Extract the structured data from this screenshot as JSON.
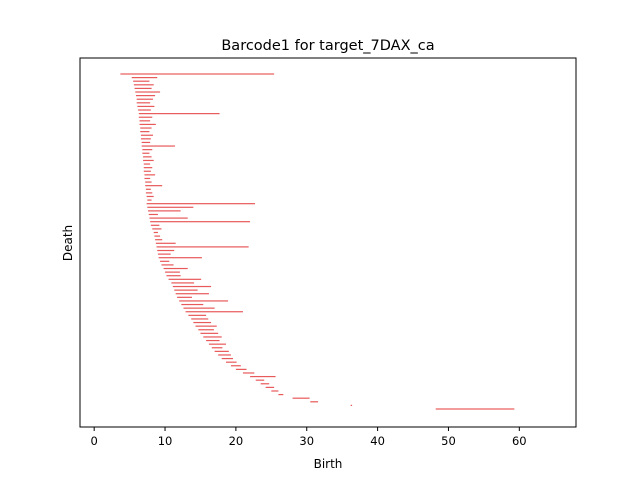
{
  "chart_data": {
    "type": "barcode",
    "title": "Barcode1 for target_7DAX_ca",
    "xlabel": "Birth",
    "ylabel": "Death",
    "xlim": [
      -2,
      68
    ],
    "xticks": [
      0,
      10,
      20,
      30,
      40,
      50,
      60
    ],
    "y_tick_labels": false,
    "bar_color": "#e8595a",
    "bars": [
      [
        3.7,
        25.4
      ],
      [
        5.3,
        8.9
      ],
      [
        5.5,
        7.8
      ],
      [
        5.6,
        8.4
      ],
      [
        5.7,
        8.1
      ],
      [
        5.8,
        9.3
      ],
      [
        5.9,
        8.6
      ],
      [
        6.0,
        8.3
      ],
      [
        6.0,
        7.9
      ],
      [
        6.1,
        8.5
      ],
      [
        6.2,
        8.0
      ],
      [
        6.3,
        17.7
      ],
      [
        6.3,
        8.2
      ],
      [
        6.4,
        7.9
      ],
      [
        6.4,
        8.7
      ],
      [
        6.5,
        8.1
      ],
      [
        6.5,
        7.8
      ],
      [
        6.6,
        8.3
      ],
      [
        6.6,
        8.0
      ],
      [
        6.7,
        7.9
      ],
      [
        6.7,
        11.4
      ],
      [
        6.8,
        8.2
      ],
      [
        6.8,
        7.8
      ],
      [
        6.9,
        8.1
      ],
      [
        6.9,
        8.4
      ],
      [
        7.0,
        7.9
      ],
      [
        7.0,
        8.2
      ],
      [
        7.0,
        8.0
      ],
      [
        7.1,
        8.6
      ],
      [
        7.1,
        7.9
      ],
      [
        7.2,
        8.1
      ],
      [
        7.2,
        9.6
      ],
      [
        7.3,
        8.0
      ],
      [
        7.3,
        8.2
      ],
      [
        7.4,
        8.4
      ],
      [
        7.5,
        8.1
      ],
      [
        7.4,
        22.7
      ],
      [
        7.5,
        14.0
      ],
      [
        7.6,
        12.2
      ],
      [
        7.7,
        9.0
      ],
      [
        7.8,
        13.2
      ],
      [
        7.9,
        22.0
      ],
      [
        8.0,
        9.2
      ],
      [
        8.2,
        9.5
      ],
      [
        8.4,
        9.0
      ],
      [
        8.5,
        9.3
      ],
      [
        8.6,
        9.6
      ],
      [
        8.7,
        11.5
      ],
      [
        8.8,
        21.8
      ],
      [
        8.9,
        11.3
      ],
      [
        9.0,
        10.8
      ],
      [
        9.1,
        15.2
      ],
      [
        9.3,
        10.6
      ],
      [
        9.5,
        11.2
      ],
      [
        9.8,
        13.2
      ],
      [
        10.0,
        12.1
      ],
      [
        10.2,
        12.2
      ],
      [
        10.5,
        15.1
      ],
      [
        10.9,
        14.1
      ],
      [
        11.1,
        16.5
      ],
      [
        11.3,
        14.6
      ],
      [
        11.5,
        16.2
      ],
      [
        11.7,
        13.8
      ],
      [
        12.0,
        18.9
      ],
      [
        12.3,
        15.4
      ],
      [
        12.6,
        17.0
      ],
      [
        12.9,
        21.0
      ],
      [
        13.3,
        15.8
      ],
      [
        13.7,
        16.1
      ],
      [
        14.0,
        16.5
      ],
      [
        14.3,
        17.3
      ],
      [
        14.7,
        16.9
      ],
      [
        15.0,
        17.5
      ],
      [
        15.4,
        18.0
      ],
      [
        15.8,
        17.7
      ],
      [
        16.2,
        18.6
      ],
      [
        16.6,
        18.1
      ],
      [
        17.0,
        19.0
      ],
      [
        17.5,
        19.3
      ],
      [
        18.0,
        19.6
      ],
      [
        18.6,
        20.1
      ],
      [
        19.3,
        20.7
      ],
      [
        20.0,
        21.5
      ],
      [
        21.0,
        22.6
      ],
      [
        22.0,
        25.6
      ],
      [
        22.8,
        24.0
      ],
      [
        23.5,
        24.7
      ],
      [
        24.2,
        25.4
      ],
      [
        25.0,
        26.0
      ],
      [
        26.0,
        26.7
      ],
      [
        28.0,
        30.4
      ],
      [
        30.5,
        31.6
      ],
      [
        36.2,
        36.4
      ],
      [
        48.2,
        59.3
      ]
    ]
  }
}
